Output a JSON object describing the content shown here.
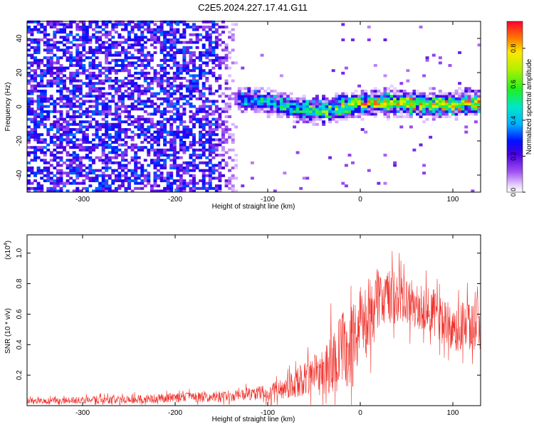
{
  "title": "C2E5.2024.227.17.41.G11",
  "chart_data": [
    {
      "type": "heatmap",
      "title": "",
      "xlabel": "Height of straight line (km)",
      "ylabel": "Frequency (Hz)",
      "xlim": [
        -360,
        130
      ],
      "ylim": [
        -50,
        50
      ],
      "xticks": [
        -300,
        -200,
        -100,
        0,
        100
      ],
      "yticks": [
        -40,
        -20,
        0,
        20,
        40
      ],
      "colorbar": {
        "label": "Normalized spectral amplitude",
        "range": [
          0,
          0.95
        ],
        "ticks": [
          0.0,
          0.2,
          0.4,
          0.6,
          0.8
        ],
        "tick_labels": [
          "0.0",
          "0.2",
          "0.4",
          "0.6",
          "0.8"
        ],
        "colormap": "rainbow"
      },
      "features": {
        "noise_region_x": [
          -360,
          -130
        ],
        "noise_amplitude": [
          0.0,
          0.35
        ],
        "signal_band_start_x": -140,
        "signal_center_hz_at": [
          [
            -140,
            4
          ],
          [
            -100,
            2
          ],
          [
            -70,
            -2
          ],
          [
            -40,
            -3
          ],
          [
            0,
            1
          ],
          [
            40,
            2
          ],
          [
            80,
            0
          ],
          [
            130,
            2
          ]
        ],
        "signal_peak_amplitude": 0.9
      }
    },
    {
      "type": "line",
      "title": "",
      "xlabel": "Height of straight line (km)",
      "ylabel": "SNR (10 * v/v)",
      "scale_label": "(x10",
      "scale_exp": "4",
      "scale_close": ")",
      "xlim": [
        -360,
        130
      ],
      "ylim": [
        0,
        1.12
      ],
      "xticks": [
        -300,
        -200,
        -100,
        0,
        100
      ],
      "yticks": [
        0.2,
        0.4,
        0.6,
        0.8,
        1.0
      ],
      "ytick_labels": [
        "0.2",
        "0.4",
        "0.6",
        "0.8",
        "1.0"
      ],
      "series": [
        {
          "color": "#f0302a",
          "envelope_x": [
            -360,
            -250,
            -150,
            -110,
            -80,
            -50,
            -30,
            -15,
            0,
            15,
            30,
            50,
            80,
            100,
            130
          ],
          "envelope_mean": [
            0.03,
            0.04,
            0.06,
            0.08,
            0.12,
            0.2,
            0.3,
            0.38,
            0.5,
            0.65,
            0.72,
            0.7,
            0.6,
            0.5,
            0.55
          ],
          "envelope_spread": [
            0.02,
            0.03,
            0.04,
            0.05,
            0.08,
            0.15,
            0.25,
            0.3,
            0.3,
            0.25,
            0.2,
            0.18,
            0.16,
            0.18,
            0.2
          ]
        }
      ]
    }
  ]
}
